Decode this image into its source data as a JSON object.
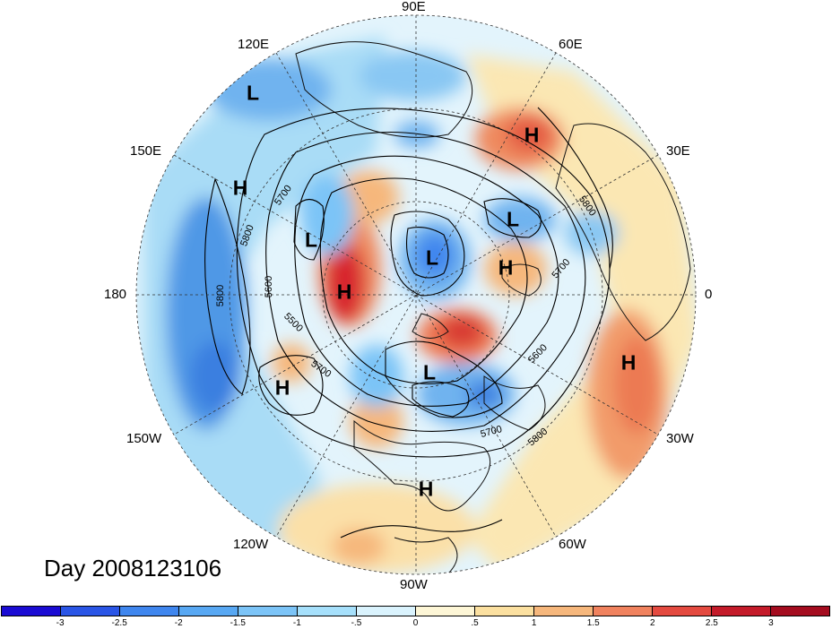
{
  "title": "Day 2008123106",
  "longitude_labels": {
    "top": "90E",
    "upper_left": "120E",
    "upper_right": "60E",
    "left_upper": "150E",
    "right_upper": "30E",
    "left": "180",
    "right": "0",
    "left_lower": "150W",
    "right_lower": "30W",
    "lower_left": "120W",
    "lower_right": "60W",
    "bottom": "90W"
  },
  "pressure_centers": [
    {
      "label": "L"
    },
    {
      "label": "H"
    },
    {
      "label": "H"
    },
    {
      "label": "L"
    },
    {
      "label": "L"
    },
    {
      "label": "H"
    },
    {
      "label": "L"
    },
    {
      "label": "H"
    },
    {
      "label": "L"
    },
    {
      "label": "H"
    },
    {
      "label": "H"
    },
    {
      "label": "H"
    }
  ],
  "contour_labels": [
    "5700",
    "5800",
    "5600",
    "5500",
    "5800",
    "5700",
    "5600",
    "5700",
    "5800",
    "5800",
    "5700"
  ],
  "colorbar": {
    "ticks": [
      "-3",
      "-2.5",
      "-2",
      "-1.5",
      "-1",
      "-.5",
      "0",
      ".5",
      "1",
      "1.5",
      "2",
      "2.5",
      "3"
    ],
    "colors": [
      "#1a0bd3",
      "#2a55e6",
      "#3f86ee",
      "#58a8f3",
      "#7cc4f7",
      "#a6e0fb",
      "#daf3fd",
      "#fdf6d6",
      "#fbe0a0",
      "#f6b77c",
      "#f0825e",
      "#e44a40",
      "#c41b2a",
      "#a40c1f"
    ]
  }
}
